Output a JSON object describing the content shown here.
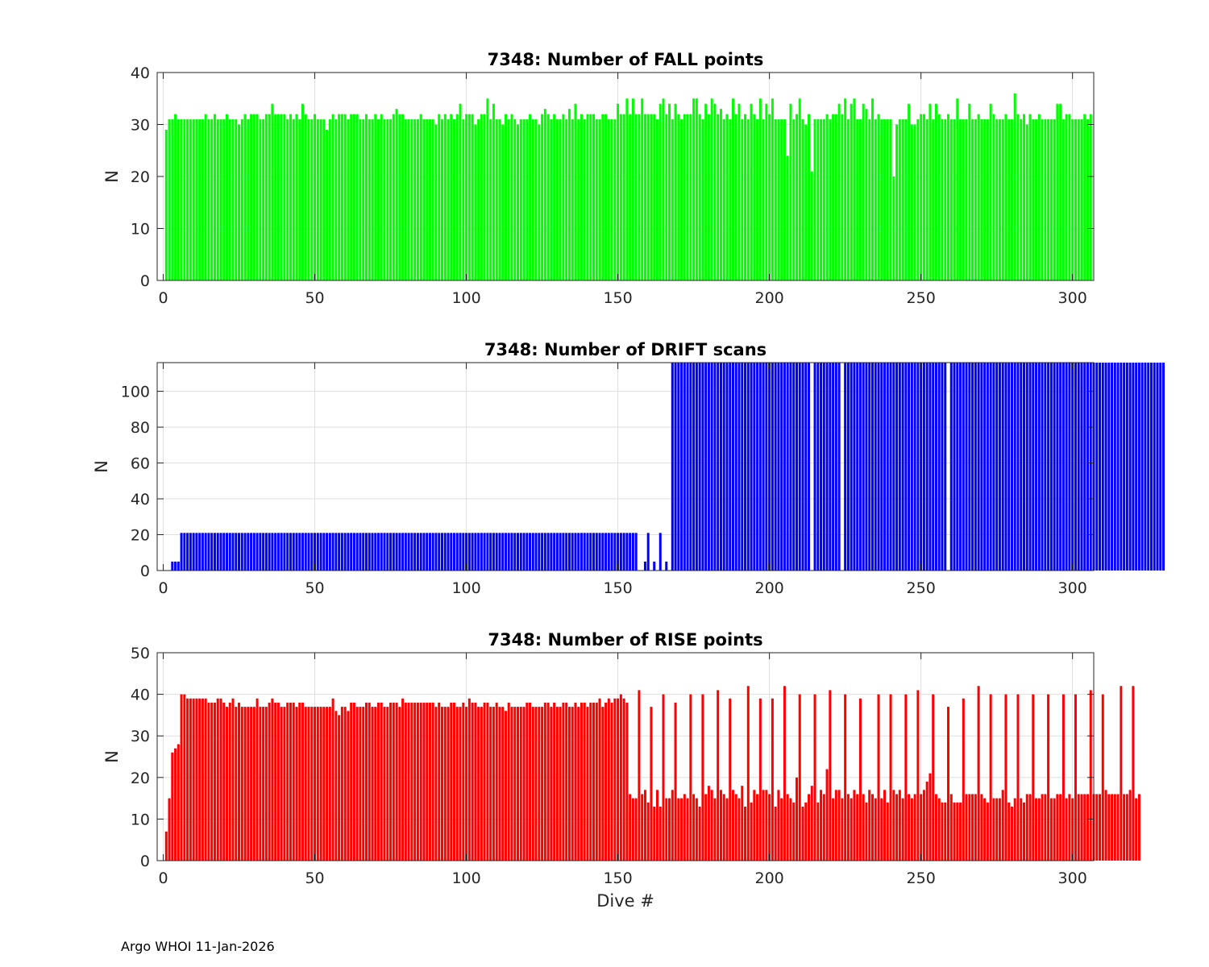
{
  "footer": "Argo WHOI 11-Jan-2026",
  "colors": {
    "fall": "#00ff00",
    "drift": "#0000ff",
    "rise": "#ff0000"
  },
  "chart_data": [
    {
      "type": "bar",
      "title": "7348: Number of FALL points",
      "xlabel": "",
      "ylabel": "N",
      "xlim": [
        -2,
        307
      ],
      "ylim": [
        0,
        40
      ],
      "xticks": [
        0,
        50,
        100,
        150,
        200,
        250,
        300
      ],
      "yticks": [
        0,
        10,
        20,
        30,
        40
      ],
      "color": "#00ff00",
      "x_start": 1,
      "values": [
        29,
        31,
        31,
        32,
        31,
        31,
        31,
        31,
        31,
        31,
        31,
        31,
        31,
        32,
        31,
        31,
        32,
        31,
        31,
        31,
        32,
        31,
        31,
        31,
        30,
        31,
        32,
        31,
        32,
        32,
        32,
        31,
        31,
        32,
        32,
        34,
        32,
        32,
        32,
        32,
        31,
        32,
        31,
        32,
        31,
        34,
        32,
        31,
        31,
        32,
        31,
        31,
        31,
        29,
        31,
        32,
        31,
        32,
        32,
        32,
        31,
        32,
        32,
        32,
        31,
        31,
        32,
        31,
        31,
        32,
        31,
        32,
        31,
        31,
        31,
        32,
        33,
        32,
        32,
        31,
        31,
        31,
        31,
        31,
        32,
        31,
        31,
        31,
        31,
        30,
        32,
        31,
        32,
        31,
        32,
        31,
        32,
        34,
        31,
        32,
        32,
        32,
        30,
        31,
        32,
        32,
        35,
        31,
        34,
        31,
        31,
        30,
        32,
        31,
        32,
        31,
        30,
        31,
        31,
        31,
        32,
        31,
        31,
        30,
        32,
        33,
        32,
        31,
        32,
        31,
        31,
        32,
        31,
        33,
        31,
        34,
        31,
        32,
        31,
        32,
        32,
        32,
        31,
        31,
        32,
        32,
        31,
        31,
        31,
        34,
        32,
        32,
        35,
        32,
        35,
        32,
        32,
        35,
        32,
        32,
        32,
        32,
        31,
        34,
        35,
        32,
        34,
        31,
        34,
        32,
        31,
        32,
        32,
        32,
        35,
        35,
        32,
        31,
        34,
        32,
        35,
        34,
        32,
        33,
        31,
        32,
        31,
        35,
        32,
        34,
        31,
        32,
        31,
        34,
        32,
        31,
        35,
        31,
        34,
        32,
        35,
        31,
        31,
        31,
        31,
        24,
        34,
        31,
        32,
        35,
        31,
        30,
        32,
        21,
        31,
        31,
        31,
        31,
        32,
        31,
        32,
        32,
        34,
        32,
        35,
        31,
        34,
        35,
        31,
        31,
        34,
        33,
        31,
        35,
        31,
        32,
        31,
        31,
        31,
        31,
        20,
        30,
        31,
        31,
        31,
        34,
        30,
        30,
        31,
        32,
        32,
        31,
        34,
        31,
        34,
        32,
        31,
        31,
        32,
        31,
        31,
        35,
        31,
        31,
        31,
        34,
        31,
        31,
        32,
        31,
        31,
        31,
        34,
        32,
        31,
        31,
        31,
        32,
        31,
        31,
        36,
        32,
        31,
        32,
        30,
        32,
        31,
        31,
        32,
        31,
        31,
        31,
        31,
        31,
        34,
        34,
        31,
        32,
        32,
        31,
        31,
        31,
        31,
        32,
        31,
        32
      ]
    },
    {
      "type": "bar",
      "title": "7348: Number of DRIFT scans",
      "xlabel": "",
      "ylabel": "N",
      "xlim": [
        -2,
        307
      ],
      "ylim": [
        0,
        116
      ],
      "xticks": [
        0,
        50,
        100,
        150,
        200,
        250,
        300
      ],
      "yticks": [
        0,
        20,
        40,
        60,
        80,
        100
      ],
      "color": "#0000ff",
      "x_start": 1,
      "values": [
        0,
        0,
        5,
        5,
        5,
        21,
        21,
        21,
        21,
        21,
        21,
        21,
        21,
        21,
        21,
        21,
        21,
        21,
        21,
        21,
        21,
        21,
        21,
        21,
        21,
        21,
        21,
        21,
        21,
        21,
        21,
        21,
        21,
        21,
        21,
        21,
        21,
        21,
        21,
        21,
        21,
        21,
        21,
        21,
        21,
        21,
        21,
        21,
        21,
        21,
        21,
        21,
        21,
        21,
        21,
        21,
        21,
        21,
        21,
        21,
        21,
        21,
        21,
        21,
        21,
        21,
        21,
        21,
        21,
        21,
        21,
        21,
        21,
        21,
        21,
        21,
        21,
        21,
        21,
        21,
        21,
        21,
        21,
        21,
        21,
        21,
        21,
        21,
        21,
        21,
        21,
        21,
        21,
        21,
        21,
        21,
        21,
        21,
        21,
        21,
        21,
        21,
        21,
        21,
        21,
        21,
        21,
        21,
        21,
        21,
        21,
        21,
        21,
        21,
        21,
        21,
        21,
        21,
        21,
        21,
        21,
        21,
        21,
        21,
        21,
        21,
        21,
        21,
        21,
        21,
        21,
        21,
        21,
        21,
        21,
        21,
        21,
        21,
        21,
        21,
        21,
        21,
        21,
        21,
        21,
        21,
        21,
        21,
        21,
        21,
        21,
        21,
        21,
        21,
        21,
        21,
        0,
        0,
        5,
        21,
        0,
        5,
        0,
        21,
        0,
        5,
        0,
        116,
        116,
        116,
        116,
        116,
        116,
        116,
        116,
        116,
        116,
        116,
        116,
        116,
        116,
        116,
        116,
        116,
        116,
        116,
        116,
        116,
        116,
        116,
        116,
        116,
        116,
        116,
        116,
        116,
        116,
        116,
        116,
        116,
        116,
        116,
        116,
        116,
        116,
        116,
        116,
        116,
        116,
        116,
        116,
        116,
        116,
        0,
        116,
        116,
        116,
        116,
        116,
        116,
        116,
        116,
        116,
        0,
        116,
        116,
        116,
        116,
        116,
        116,
        116,
        116,
        116,
        116,
        116,
        116,
        116,
        116,
        116,
        116,
        116,
        116,
        116,
        116,
        116,
        116,
        116,
        116,
        116,
        116,
        116,
        116,
        116,
        116,
        116,
        116,
        116,
        116,
        0,
        116,
        116,
        116,
        116,
        116,
        116,
        116,
        116,
        116,
        116,
        116,
        116,
        116,
        116,
        116,
        116,
        116,
        116,
        116,
        116,
        116,
        116,
        116,
        116,
        116,
        116,
        116,
        116,
        116,
        116,
        116,
        116,
        116,
        116,
        116,
        116,
        116,
        116,
        116,
        116,
        116,
        116,
        116,
        116,
        116,
        116,
        116,
        116,
        116,
        116,
        116,
        116,
        116,
        116,
        116,
        116,
        116,
        116,
        116,
        116,
        116,
        116,
        116,
        116,
        116,
        116,
        116,
        116,
        116,
        116,
        116
      ]
    },
    {
      "type": "bar",
      "title": "7348: Number of RISE points",
      "xlabel": "Dive #",
      "ylabel": "N",
      "xlim": [
        -2,
        307
      ],
      "ylim": [
        0,
        50
      ],
      "xticks": [
        0,
        50,
        100,
        150,
        200,
        250,
        300
      ],
      "yticks": [
        0,
        10,
        20,
        30,
        40,
        50
      ],
      "color": "#ff0000",
      "x_start": 1,
      "values": [
        7,
        15,
        26,
        27,
        28,
        40,
        40,
        39,
        39,
        39,
        39,
        39,
        39,
        39,
        38,
        38,
        38,
        39,
        39,
        38,
        37,
        38,
        39,
        37,
        38,
        37,
        37,
        37,
        37,
        37,
        39,
        37,
        37,
        37,
        38,
        39,
        38,
        38,
        37,
        37,
        38,
        38,
        38,
        37,
        38,
        38,
        37,
        37,
        37,
        37,
        37,
        37,
        37,
        37,
        37,
        39,
        36,
        35,
        37,
        37,
        36,
        38,
        38,
        37,
        37,
        37,
        38,
        38,
        37,
        37,
        38,
        38,
        37,
        37,
        38,
        38,
        38,
        37,
        39,
        38,
        38,
        38,
        38,
        38,
        38,
        38,
        38,
        38,
        38,
        37,
        38,
        37,
        37,
        37,
        38,
        38,
        37,
        37,
        38,
        37,
        39,
        38,
        38,
        37,
        37,
        38,
        38,
        37,
        37,
        38,
        37,
        37,
        36,
        38,
        37,
        37,
        37,
        37,
        37,
        38,
        38,
        37,
        37,
        37,
        37,
        38,
        38,
        37,
        38,
        37,
        37,
        38,
        38,
        37,
        37,
        38,
        37,
        38,
        38,
        37,
        38,
        38,
        38,
        39,
        37,
        38,
        39,
        38,
        39,
        39,
        40,
        39,
        38,
        16,
        15,
        15,
        41,
        16,
        17,
        14,
        37,
        13,
        17,
        13,
        40,
        15,
        15,
        17,
        38,
        15,
        15,
        16,
        15,
        40,
        16,
        15,
        13,
        40,
        16,
        18,
        17,
        15,
        41,
        17,
        16,
        15,
        39,
        17,
        16,
        15,
        18,
        13,
        42,
        14,
        17,
        16,
        39,
        17,
        17,
        16,
        39,
        13,
        17,
        15,
        42,
        16,
        15,
        14,
        20,
        40,
        13,
        14,
        16,
        18,
        40,
        14,
        17,
        16,
        22,
        41,
        15,
        17,
        17,
        15,
        40,
        16,
        15,
        17,
        16,
        39,
        16,
        14,
        17,
        16,
        15,
        40,
        15,
        17,
        14,
        40,
        17,
        16,
        17,
        15,
        40,
        16,
        15,
        16,
        41,
        16,
        17,
        19,
        21,
        40,
        16,
        15,
        14,
        14,
        37,
        16,
        14,
        14,
        14,
        39,
        16,
        16,
        16,
        16,
        42,
        16,
        15,
        14,
        40,
        15,
        15,
        15,
        17,
        40,
        14,
        13,
        15,
        40,
        15,
        14,
        16,
        16,
        40,
        15,
        15,
        16,
        16,
        40,
        15,
        15,
        16,
        16,
        40,
        15,
        16,
        15,
        40,
        16,
        16,
        16,
        16,
        41,
        16,
        16,
        16,
        40,
        17,
        16,
        16,
        16,
        16,
        42,
        16,
        16,
        17,
        42,
        15,
        16
      ]
    }
  ]
}
